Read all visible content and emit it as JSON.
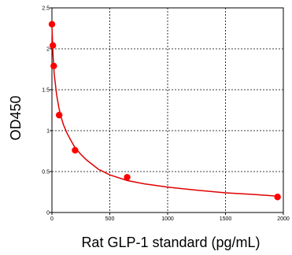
{
  "chart_data": {
    "type": "scatter",
    "title": "",
    "xlabel": "Rat GLP-1 standard (pg/mL)",
    "ylabel": "OD450",
    "xlim": [
      0,
      2000
    ],
    "ylim": [
      0,
      2.5
    ],
    "xticks": [
      0,
      500,
      1000,
      1500,
      2000
    ],
    "xtick_labels": [
      "0",
      "500",
      "1000",
      "1500",
      "2000"
    ],
    "yticks": [
      0,
      0.5,
      1,
      1.5,
      2,
      2.5
    ],
    "ytick_labels": [
      "0",
      "0.5",
      "1",
      "1.5",
      "2",
      "2.5"
    ],
    "grid": true,
    "grid_style": "dashed",
    "legend": "none",
    "marker_color": "#ff0000",
    "line_color": "#e00000",
    "series": [
      {
        "x": [
          0,
          7.8,
          15.6,
          62.5,
          200,
          650,
          1950
        ],
        "y": [
          2.3,
          2.04,
          1.79,
          1.19,
          0.76,
          0.43,
          0.19
        ]
      }
    ],
    "fit_curve": {
      "x": [
        1,
        10,
        20,
        40,
        60,
        80,
        100,
        130,
        160,
        200,
        250,
        300,
        400,
        500,
        650,
        800,
        1000,
        1200,
        1500,
        1750,
        1950
      ],
      "y": [
        2.25,
        1.9,
        1.69,
        1.44,
        1.28,
        1.16,
        1.07,
        0.97,
        0.89,
        0.79,
        0.71,
        0.64,
        0.53,
        0.46,
        0.39,
        0.35,
        0.31,
        0.28,
        0.24,
        0.22,
        0.2
      ]
    }
  }
}
